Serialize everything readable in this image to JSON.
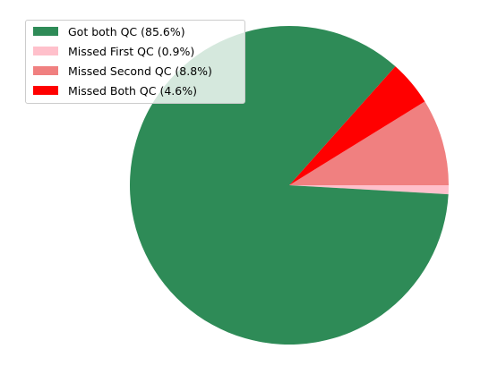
{
  "chart_data": {
    "type": "pie",
    "categories": [
      "Got both QC",
      "Missed First QC",
      "Missed Second QC",
      "Missed Both QC"
    ],
    "values": [
      85.6,
      0.9,
      8.8,
      4.6
    ],
    "unit": "%",
    "colors": [
      "#2e8b57",
      "#ffc0cb",
      "#f08080",
      "#ff0000"
    ],
    "legend_position": "top-left",
    "legend": [
      {
        "label": "Got both QC (85.6%)",
        "color": "#2e8b57"
      },
      {
        "label": "Missed First QC (0.9%)",
        "color": "#ffc0cb"
      },
      {
        "label": "Missed Second QC (8.8%)",
        "color": "#f08080"
      },
      {
        "label": "Missed Both QC (4.6%)",
        "color": "#ff0000"
      }
    ]
  }
}
